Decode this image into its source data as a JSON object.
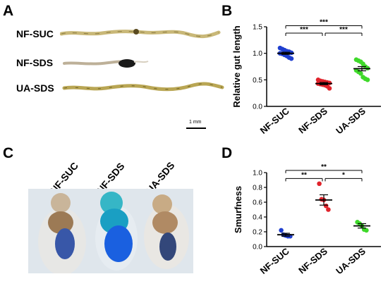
{
  "panels": {
    "A": "A",
    "B": "B",
    "C": "C",
    "D": "D"
  },
  "panel_a": {
    "labels": [
      "NF-SUC",
      "NF-SDS",
      "UA-SDS"
    ],
    "scale_bar": "1 mm"
  },
  "panel_c": {
    "labels": [
      "NF-SUC",
      "NF-SDS",
      "UA-SDS"
    ]
  },
  "colors": {
    "NF-SUC": "#1f3fcf",
    "NF-SDS": "#e0232b",
    "UA-SDS": "#3fd92a"
  },
  "chart_data": [
    {
      "type": "scatter",
      "panel": "B",
      "ylabel": "Relative gut length",
      "categories": [
        "NF-SUC",
        "NF-SDS",
        "UA-SDS"
      ],
      "ylim": [
        0,
        1.5
      ],
      "yticks": [
        "0.0",
        "0.5",
        "1.0",
        "1.5"
      ],
      "groups": [
        {
          "name": "NF-SUC",
          "mean": 1.0,
          "sem": 0.02,
          "points": [
            1.1,
            1.08,
            1.06,
            1.04,
            1.03,
            1.01,
            1.0,
            0.99,
            0.97,
            0.95,
            0.92,
            0.9
          ]
        },
        {
          "name": "NF-SDS",
          "mean": 0.43,
          "sem": 0.02,
          "points": [
            0.5,
            0.48,
            0.47,
            0.46,
            0.45,
            0.44,
            0.43,
            0.42,
            0.41,
            0.4,
            0.38,
            0.34
          ]
        },
        {
          "name": "UA-SDS",
          "mean": 0.71,
          "sem": 0.04,
          "points": [
            0.88,
            0.86,
            0.84,
            0.8,
            0.75,
            0.72,
            0.68,
            0.65,
            0.62,
            0.55,
            0.52,
            0.5
          ]
        }
      ],
      "significance": [
        {
          "from": 0,
          "to": 1,
          "label": "***",
          "y": 1.38
        },
        {
          "from": 1,
          "to": 2,
          "label": "***",
          "y": 1.38
        },
        {
          "from": 0,
          "to": 2,
          "label": "***",
          "y": 1.52
        }
      ]
    },
    {
      "type": "scatter",
      "panel": "D",
      "ylabel": "Smurfness",
      "categories": [
        "NF-SUC",
        "NF-SDS",
        "UA-SDS"
      ],
      "ylim": [
        0,
        1.0
      ],
      "yticks": [
        "0.0",
        "0.2",
        "0.4",
        "0.6",
        "0.8",
        "1.0"
      ],
      "groups": [
        {
          "name": "NF-SUC",
          "mean": 0.16,
          "sem": 0.02,
          "points": [
            0.22,
            0.16,
            0.15,
            0.14,
            0.14
          ]
        },
        {
          "name": "NF-SDS",
          "mean": 0.63,
          "sem": 0.07,
          "points": [
            0.85,
            0.64,
            0.63,
            0.55,
            0.5
          ]
        },
        {
          "name": "UA-SDS",
          "mean": 0.28,
          "sem": 0.03,
          "points": [
            0.33,
            0.31,
            0.28,
            0.23,
            0.22
          ]
        }
      ],
      "significance": [
        {
          "from": 0,
          "to": 1,
          "label": "**",
          "y": 0.92
        },
        {
          "from": 1,
          "to": 2,
          "label": "*",
          "y": 0.92
        },
        {
          "from": 0,
          "to": 2,
          "label": "**",
          "y": 1.03
        }
      ]
    }
  ]
}
